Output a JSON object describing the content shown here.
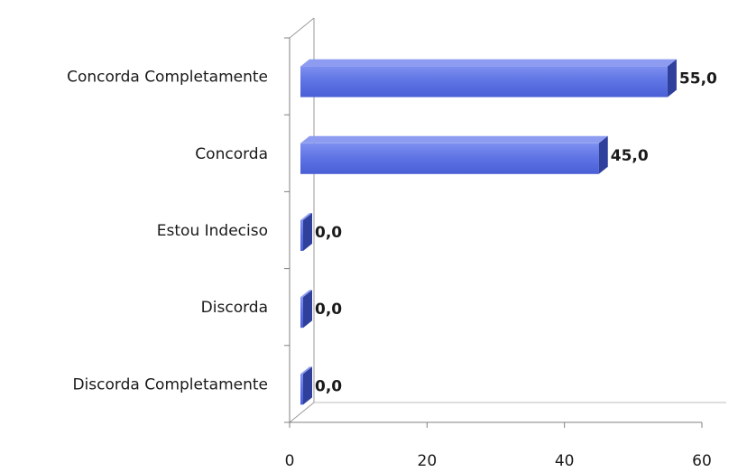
{
  "chart_data": {
    "type": "bar",
    "orientation": "horizontal",
    "title": "",
    "xlabel": "",
    "ylabel": "",
    "categories": [
      "Concorda Completamente",
      "Concorda",
      "Estou Indeciso",
      "Discorda",
      "Discorda Completamente"
    ],
    "values": [
      55.0,
      45.0,
      0.0,
      0.0,
      0.0
    ],
    "data_labels": [
      "55,0",
      "45,0",
      "0,0",
      "0,0",
      "0,0"
    ],
    "xlim": [
      0,
      60
    ],
    "x_ticks": [
      0,
      20,
      40,
      60
    ],
    "x_tick_labels": [
      "0",
      "20",
      "40",
      "60"
    ],
    "grid": false,
    "legend": "none",
    "style": "3d",
    "bar_color": "#5b6fe0",
    "bar_top_color": "#8d9cf0",
    "bar_side_color": "#2f3f9c"
  }
}
